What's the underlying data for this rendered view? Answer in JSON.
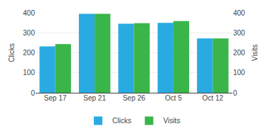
{
  "chart_data": {
    "type": "bar",
    "categories": [
      "Sep 17",
      "Sep 21",
      "Sep 26",
      "Oct 5",
      "Oct 12"
    ],
    "series": [
      {
        "name": "Clicks",
        "color": "#29ABE2",
        "values": [
          232,
          395,
          345,
          350,
          272
        ]
      },
      {
        "name": "Visits",
        "color": "#39B54A",
        "values": [
          243,
          395,
          348,
          358,
          272
        ]
      }
    ],
    "ylabel": "Clicks",
    "y2label": "Visits",
    "ylim": [
      0,
      400
    ],
    "yticks": [
      0,
      100,
      200,
      300,
      400
    ],
    "y2lim": [
      0,
      400
    ],
    "y2ticks": [
      0,
      100,
      200,
      300,
      400
    ],
    "grid": true,
    "legend": "bottom"
  }
}
